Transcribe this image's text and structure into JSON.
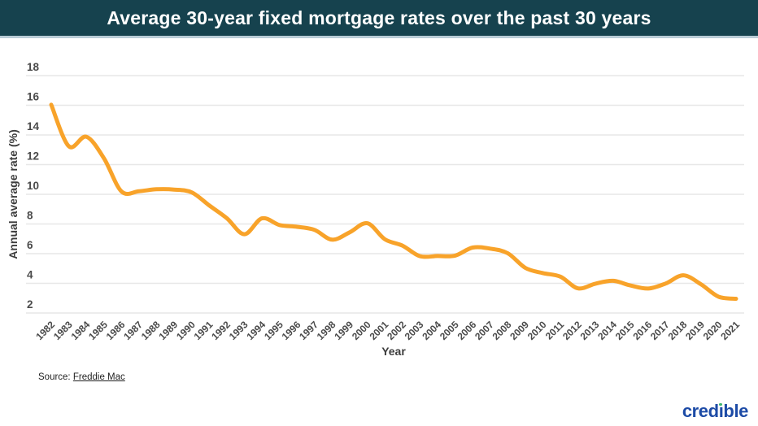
{
  "header": {
    "title": "Average 30-year fixed mortgage rates over the past 30 years"
  },
  "theme": {
    "page-bg": "#FFFFFF",
    "header-bg": "#16424E",
    "header-border": "#B9CCD6",
    "title-text": "#FFFFFF",
    "line": "#F8A32A",
    "grid": "#E7E7E7",
    "tick": "#4A4A4A",
    "axis-title": "#3D3D3D",
    "source-text": "#1F1F1F",
    "logo-blue": "#1D4BA6",
    "logo-green": "#3AB56E"
  },
  "chart_data": {
    "type": "line",
    "title": "Average 30-year fixed mortgage rates over the past 30 years",
    "xlabel": "Year",
    "ylabel": "Annual average rate (%)",
    "ylim": [
      2,
      18
    ],
    "yticks": [
      2,
      4,
      6,
      8,
      10,
      12,
      14,
      16,
      18
    ],
    "grid": true,
    "legend_position": "none",
    "x": [
      1982,
      1983,
      1984,
      1985,
      1986,
      1987,
      1988,
      1989,
      1990,
      1991,
      1992,
      1993,
      1994,
      1995,
      1996,
      1997,
      1998,
      1999,
      2000,
      2001,
      2002,
      2003,
      2004,
      2005,
      2006,
      2007,
      2008,
      2009,
      2010,
      2011,
      2012,
      2013,
      2014,
      2015,
      2016,
      2017,
      2018,
      2019,
      2020,
      2021
    ],
    "values": [
      16.04,
      13.24,
      13.88,
      12.43,
      10.19,
      10.21,
      10.34,
      10.32,
      10.13,
      9.25,
      8.39,
      7.31,
      8.38,
      7.93,
      7.81,
      7.6,
      6.94,
      7.44,
      8.05,
      6.97,
      6.54,
      5.83,
      5.84,
      5.87,
      6.41,
      6.34,
      6.03,
      5.04,
      4.69,
      4.45,
      3.66,
      3.98,
      4.17,
      3.85,
      3.65,
      3.99,
      4.54,
      3.94,
      3.1,
      2.96
    ]
  },
  "footer": {
    "source_prefix": "Source:",
    "source_link": "Freddie Mac",
    "logo_text": "credible",
    "logo_parts": {
      "pre": "cred",
      "i_char": "ı",
      "post": "ble"
    }
  }
}
